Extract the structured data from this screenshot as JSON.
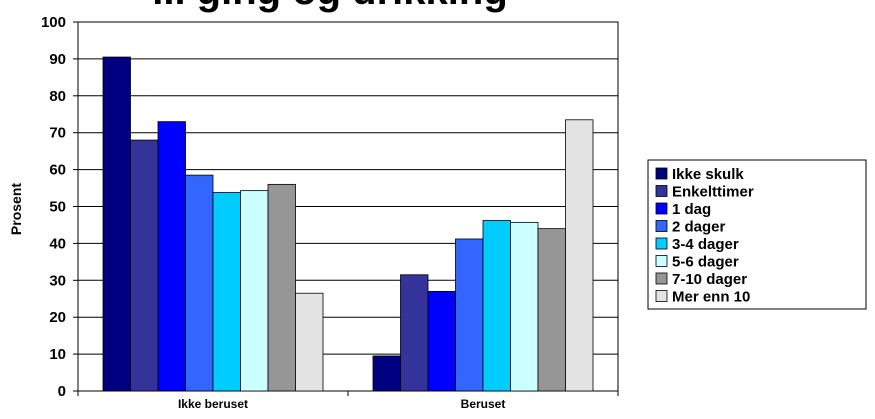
{
  "chart_data": {
    "type": "bar",
    "title": "... ging og drikking",
    "ylabel": "Prosent",
    "xlabel": "",
    "ylim": [
      0,
      100
    ],
    "yticks": [
      0,
      10,
      20,
      30,
      40,
      50,
      60,
      70,
      80,
      90,
      100
    ],
    "grid": true,
    "legend_position": "right",
    "categories": [
      "Ikke beruset",
      "Beruset"
    ],
    "series": [
      {
        "name": "Ikke skulk",
        "color": "#000080",
        "values": [
          90.5,
          9.5
        ]
      },
      {
        "name": "Enkelttimer",
        "color": "#333399",
        "values": [
          68,
          31.5
        ]
      },
      {
        "name": "1 dag",
        "color": "#0000ff",
        "values": [
          73,
          27
        ]
      },
      {
        "name": "2 dager",
        "color": "#3366ff",
        "values": [
          58.5,
          41.2
        ]
      },
      {
        "name": "3-4 dager",
        "color": "#00ccff",
        "values": [
          53.8,
          46.2
        ]
      },
      {
        "name": "5-6 dager",
        "color": "#ccffff",
        "values": [
          54.3,
          45.7
        ]
      },
      {
        "name": "7-10 dager",
        "color": "#969696",
        "values": [
          56,
          44
        ]
      },
      {
        "name": "Mer enn 10",
        "color": "#e3e3e3",
        "values": [
          26.5,
          73.5
        ]
      }
    ]
  }
}
